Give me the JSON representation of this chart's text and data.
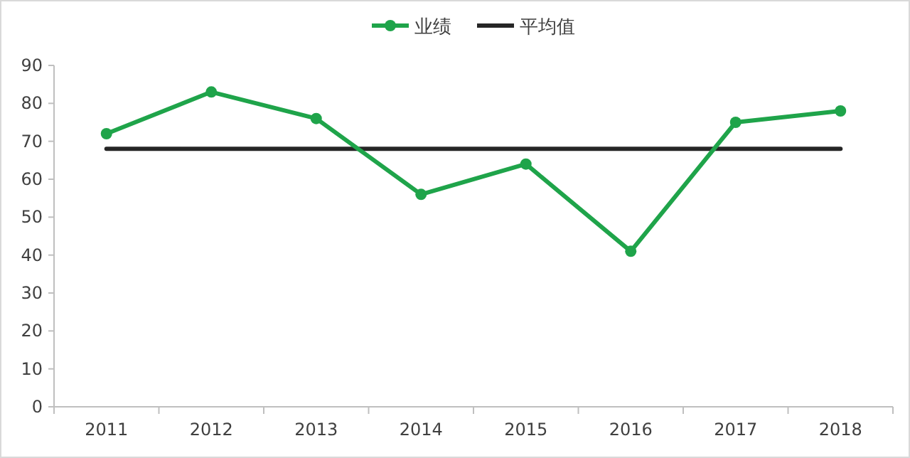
{
  "chart_data": {
    "type": "line",
    "categories": [
      "2011",
      "2012",
      "2013",
      "2014",
      "2015",
      "2016",
      "2017",
      "2018"
    ],
    "series": [
      {
        "name": "业绩",
        "color": "#1fa44a",
        "marker": "circle",
        "values": [
          72,
          83,
          76,
          56,
          64,
          41,
          75,
          78
        ]
      },
      {
        "name": "平均值",
        "color": "#262626",
        "marker": "none",
        "values": [
          68,
          68,
          68,
          68,
          68,
          68,
          68,
          68
        ]
      }
    ],
    "ylim": [
      0,
      90
    ],
    "yticks": [
      0,
      10,
      20,
      30,
      40,
      50,
      60,
      70,
      80,
      90
    ],
    "legend": "top"
  }
}
